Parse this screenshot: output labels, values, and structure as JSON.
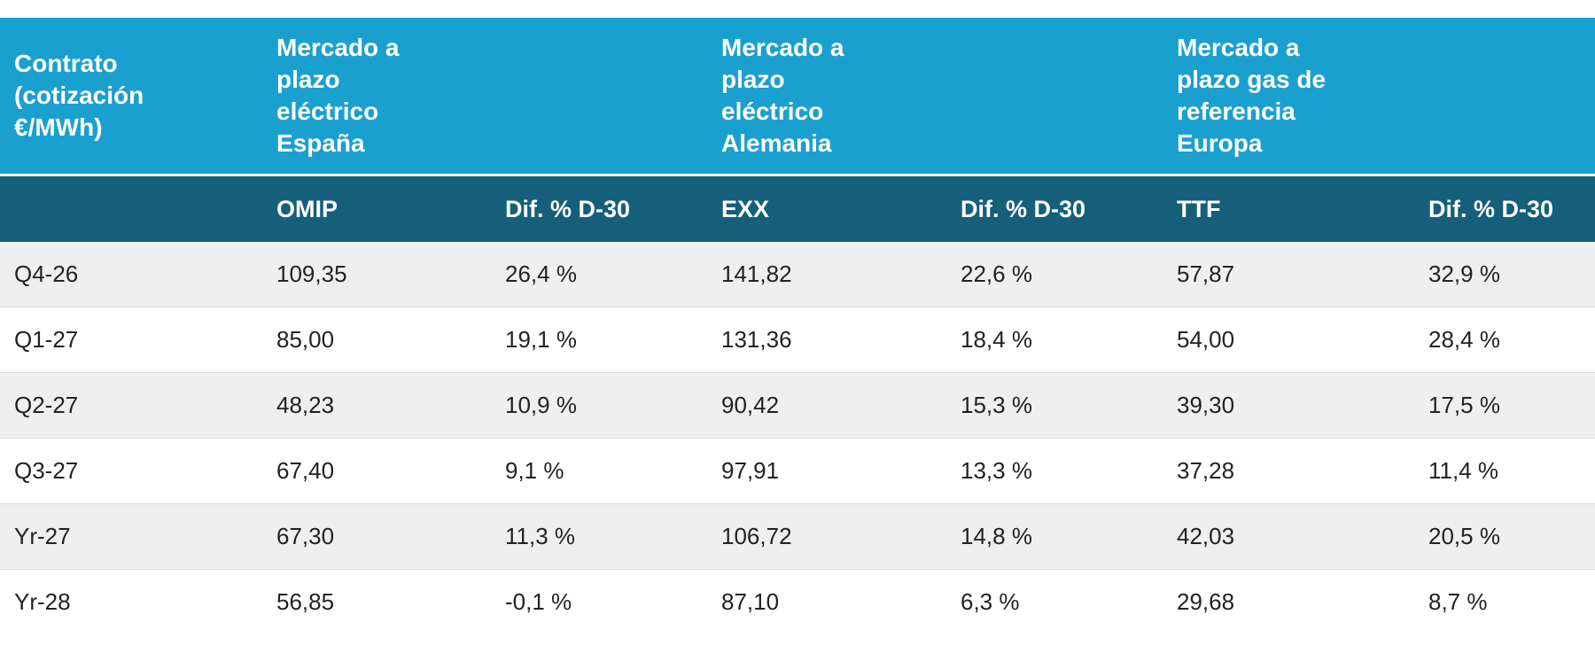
{
  "header": {
    "contract": "Contrato (cotización €/MWh)",
    "spain": "Mercado a plazo eléctrico España",
    "germany": "Mercado a plazo eléctrico Alemania",
    "gas": "Mercado a plazo gas de referencia Europa"
  },
  "subheader": {
    "omip": "OMIP",
    "dif_spain": "Dif. % D-30",
    "exx": "EXX",
    "dif_germany": "Dif. % D-30",
    "ttf": "TTF",
    "dif_gas": "Dif. % D-30"
  },
  "rows": [
    {
      "contract": "Q4-26",
      "omip": "109,35",
      "omip_dif": "26,4 %",
      "exx": "141,82",
      "exx_dif": "22,6 %",
      "ttf": "57,87",
      "ttf_dif": "32,9 %"
    },
    {
      "contract": "Q1-27",
      "omip": "85,00",
      "omip_dif": "19,1 %",
      "exx": "131,36",
      "exx_dif": "18,4 %",
      "ttf": "54,00",
      "ttf_dif": "28,4 %"
    },
    {
      "contract": "Q2-27",
      "omip": "48,23",
      "omip_dif": "10,9 %",
      "exx": "90,42",
      "exx_dif": "15,3 %",
      "ttf": "39,30",
      "ttf_dif": "17,5 %"
    },
    {
      "contract": "Q3-27",
      "omip": "67,40",
      "omip_dif": "9,1 %",
      "exx": "97,91",
      "exx_dif": "13,3 %",
      "ttf": "37,28",
      "ttf_dif": "11,4 %"
    },
    {
      "contract": "Yr-27",
      "omip": "67,30",
      "omip_dif": "11,3 %",
      "exx": "106,72",
      "exx_dif": "14,8 %",
      "ttf": "42,03",
      "ttf_dif": "20,5 %"
    },
    {
      "contract": "Yr-28",
      "omip": "56,85",
      "omip_dif": "-0,1 %",
      "exx": "87,10",
      "exx_dif": "6,3 %",
      "ttf": "29,68",
      "ttf_dif": "8,7 %"
    }
  ],
  "colors": {
    "header_bg": "#1aa0cf",
    "subheader_bg": "#155f7a",
    "row_alt_bg": "#efefef"
  }
}
